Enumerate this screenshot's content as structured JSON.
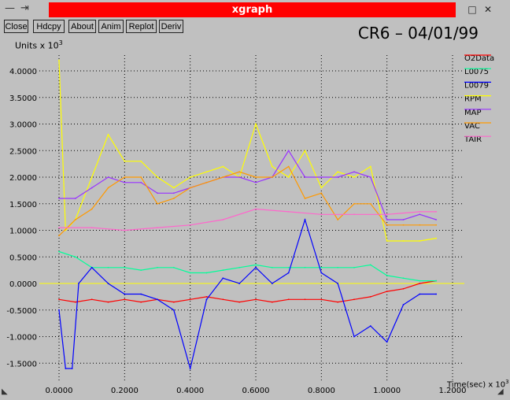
{
  "window": {
    "title": "xgraph",
    "controls": {
      "minimize": "—",
      "pin": "⇥",
      "iconify": "□",
      "close": "✕"
    }
  },
  "toolbar": {
    "buttons": [
      {
        "id": "close",
        "label": "Close"
      },
      {
        "id": "hdcpy",
        "label": "Hdcpy"
      },
      {
        "id": "about",
        "label": "About"
      },
      {
        "id": "anim",
        "label": "Anim"
      },
      {
        "id": "replot",
        "label": "Replot"
      },
      {
        "id": "deriv",
        "label": "Deriv"
      }
    ]
  },
  "graph": {
    "title": "CR6 – 04/01/99",
    "y_units": "Units x 10",
    "y_exp": "3",
    "x_units": "Time(sec) x 10",
    "x_exp": "3"
  },
  "colors": {
    "background": "#c0c0c0",
    "titlebar_accent": "#ff0000"
  },
  "chart_data": {
    "type": "line",
    "title": "CR6 – 04/01/99",
    "xlabel": "Time(sec) x 10^3",
    "ylabel": "Units x 10^3",
    "xlim": [
      -0.05,
      1.2
    ],
    "ylim": [
      -1.8,
      4.3
    ],
    "grid": true,
    "legend_position": "right",
    "x_ticks": [
      "0.0000",
      "0.2000",
      "0.4000",
      "0.6000",
      "0.8000",
      "1.0000",
      "1.2000"
    ],
    "y_ticks": [
      "4.0000",
      "3.5000",
      "3.0000",
      "2.5000",
      "2.0000",
      "1.5000",
      "1.0000",
      "0.5000",
      "0.0000",
      "-0.5000",
      "-1.0000",
      "-1.5000"
    ],
    "x_tick_values": [
      0.0,
      0.2,
      0.4,
      0.6,
      0.8,
      1.0,
      1.2
    ],
    "y_tick_values": [
      4.0,
      3.5,
      3.0,
      2.5,
      2.0,
      1.5,
      1.0,
      0.5,
      0.0,
      -0.5,
      -1.0,
      -1.5
    ],
    "series": [
      {
        "name": "O2Data",
        "color": "#ff0000",
        "x": [
          0.0,
          0.05,
          0.1,
          0.15,
          0.2,
          0.25,
          0.3,
          0.35,
          0.4,
          0.45,
          0.5,
          0.55,
          0.6,
          0.65,
          0.7,
          0.75,
          0.8,
          0.85,
          0.9,
          0.95,
          1.0,
          1.05,
          1.1,
          1.15
        ],
        "y": [
          -0.3,
          -0.35,
          -0.3,
          -0.35,
          -0.3,
          -0.35,
          -0.3,
          -0.35,
          -0.3,
          -0.25,
          -0.3,
          -0.35,
          -0.3,
          -0.35,
          -0.3,
          -0.3,
          -0.3,
          -0.35,
          -0.3,
          -0.25,
          -0.15,
          -0.1,
          0.0,
          0.05
        ]
      },
      {
        "name": "L0075",
        "color": "#00ff99",
        "x": [
          0.0,
          0.05,
          0.1,
          0.15,
          0.2,
          0.25,
          0.3,
          0.35,
          0.4,
          0.45,
          0.5,
          0.55,
          0.6,
          0.65,
          0.7,
          0.75,
          0.8,
          0.85,
          0.9,
          0.95,
          1.0,
          1.05,
          1.1,
          1.15
        ],
        "y": [
          0.6,
          0.5,
          0.3,
          0.3,
          0.3,
          0.25,
          0.3,
          0.3,
          0.2,
          0.2,
          0.25,
          0.3,
          0.35,
          0.3,
          0.3,
          0.3,
          0.3,
          0.3,
          0.3,
          0.35,
          0.15,
          0.1,
          0.05,
          0.05
        ]
      },
      {
        "name": "L0079",
        "color": "#0000ff",
        "x": [
          0.0,
          0.02,
          0.04,
          0.06,
          0.1,
          0.15,
          0.2,
          0.25,
          0.3,
          0.35,
          0.4,
          0.45,
          0.5,
          0.55,
          0.6,
          0.65,
          0.7,
          0.75,
          0.8,
          0.85,
          0.9,
          0.95,
          1.0,
          1.05,
          1.1,
          1.15
        ],
        "y": [
          -0.5,
          -1.6,
          -1.6,
          0.0,
          0.3,
          0.0,
          -0.2,
          -0.2,
          -0.3,
          -0.5,
          -1.6,
          -0.3,
          0.1,
          0.0,
          0.3,
          0.0,
          0.2,
          1.2,
          0.2,
          0.0,
          -1.0,
          -0.8,
          -1.1,
          -0.4,
          -0.2,
          -0.2
        ]
      },
      {
        "name": "RPM",
        "color": "#ffff00",
        "x": [
          0.0,
          0.02,
          0.05,
          0.1,
          0.15,
          0.2,
          0.25,
          0.3,
          0.35,
          0.4,
          0.45,
          0.5,
          0.55,
          0.6,
          0.65,
          0.7,
          0.75,
          0.8,
          0.85,
          0.9,
          0.95,
          1.0,
          1.05,
          1.1,
          1.15
        ],
        "y": [
          4.2,
          1.0,
          1.2,
          2.0,
          2.8,
          2.3,
          2.3,
          2.0,
          1.8,
          2.0,
          2.1,
          2.2,
          2.0,
          3.0,
          2.2,
          2.0,
          2.5,
          1.8,
          2.1,
          2.0,
          2.2,
          0.8,
          0.8,
          0.8,
          0.85
        ]
      },
      {
        "name": "MAP",
        "color": "#9933ff",
        "x": [
          0.0,
          0.05,
          0.1,
          0.15,
          0.2,
          0.25,
          0.3,
          0.35,
          0.4,
          0.45,
          0.5,
          0.55,
          0.6,
          0.65,
          0.7,
          0.75,
          0.8,
          0.85,
          0.9,
          0.95,
          1.0,
          1.05,
          1.1,
          1.15
        ],
        "y": [
          1.6,
          1.6,
          1.8,
          2.0,
          1.9,
          1.9,
          1.7,
          1.7,
          1.8,
          1.9,
          2.0,
          2.0,
          1.9,
          2.0,
          2.5,
          2.0,
          2.0,
          2.0,
          2.1,
          2.0,
          1.2,
          1.2,
          1.3,
          1.2
        ]
      },
      {
        "name": "VAC",
        "color": "#ff9900",
        "x": [
          0.0,
          0.05,
          0.1,
          0.15,
          0.2,
          0.25,
          0.3,
          0.35,
          0.4,
          0.45,
          0.5,
          0.55,
          0.6,
          0.65,
          0.7,
          0.75,
          0.8,
          0.85,
          0.9,
          0.95,
          1.0,
          1.05,
          1.1,
          1.15
        ],
        "y": [
          0.9,
          1.2,
          1.4,
          1.8,
          2.0,
          2.0,
          1.5,
          1.6,
          1.8,
          1.9,
          2.0,
          2.1,
          2.0,
          2.0,
          2.2,
          1.6,
          1.7,
          1.2,
          1.5,
          1.5,
          1.1,
          1.1,
          1.1,
          1.1
        ]
      },
      {
        "name": "TAIR",
        "color": "#ff66cc",
        "x": [
          0.0,
          0.1,
          0.2,
          0.3,
          0.4,
          0.5,
          0.6,
          0.7,
          0.8,
          0.9,
          1.0,
          1.1,
          1.15
        ],
        "y": [
          1.05,
          1.05,
          1.0,
          1.05,
          1.1,
          1.2,
          1.4,
          1.35,
          1.3,
          1.3,
          1.3,
          1.35,
          1.35
        ]
      }
    ]
  }
}
